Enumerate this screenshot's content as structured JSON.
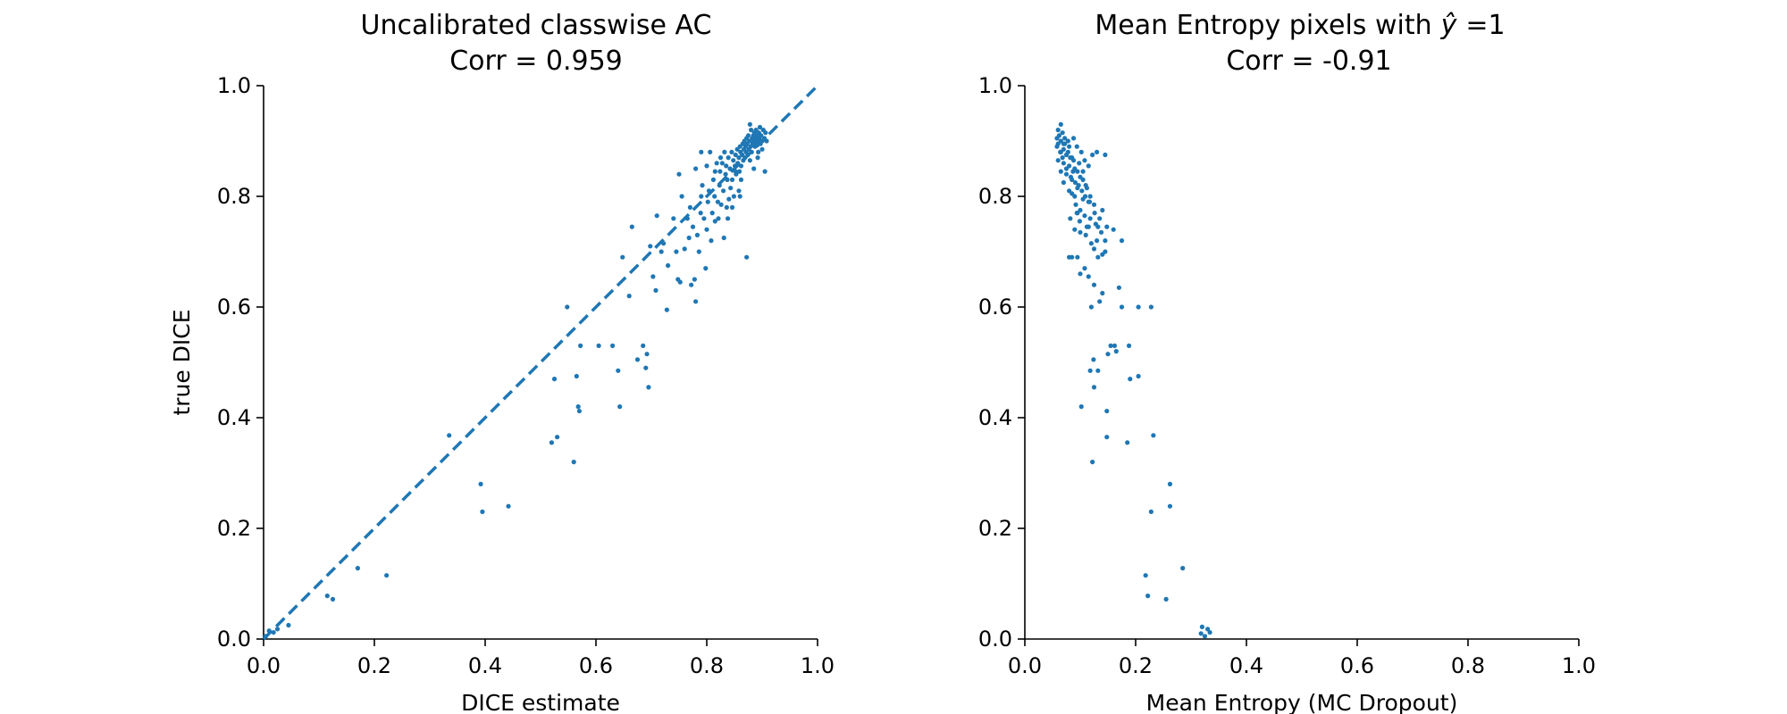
{
  "chart_data": [
    {
      "type": "scatter",
      "title": "Uncalibrated classwise AC",
      "subtitle": "Corr = 0.959",
      "xlabel": "DICE estimate",
      "ylabel": "true DICE",
      "xlim": [
        0,
        1
      ],
      "ylim": [
        0,
        1
      ],
      "xticks": [
        "0.0",
        "0.2",
        "0.4",
        "0.6",
        "0.8",
        "1.0"
      ],
      "yticks": [
        "0.0",
        "0.2",
        "0.4",
        "0.6",
        "0.8",
        "1.0"
      ],
      "grid": false,
      "reference_line": {
        "style": "dashed",
        "from": [
          0,
          0
        ],
        "to": [
          1,
          1
        ]
      },
      "color": "#1f77b4",
      "points": [
        [
          0.004,
          0.005
        ],
        [
          0.01,
          0.015
        ],
        [
          0.018,
          0.012
        ],
        [
          0.025,
          0.018
        ],
        [
          0.045,
          0.025
        ],
        [
          0.115,
          0.078
        ],
        [
          0.125,
          0.072
        ],
        [
          0.17,
          0.128
        ],
        [
          0.222,
          0.115
        ],
        [
          0.335,
          0.368
        ],
        [
          0.392,
          0.28
        ],
        [
          0.395,
          0.23
        ],
        [
          0.442,
          0.24
        ],
        [
          0.52,
          0.355
        ],
        [
          0.525,
          0.47
        ],
        [
          0.53,
          0.365
        ],
        [
          0.548,
          0.6
        ],
        [
          0.56,
          0.32
        ],
        [
          0.565,
          0.475
        ],
        [
          0.568,
          0.42
        ],
        [
          0.57,
          0.412
        ],
        [
          0.572,
          0.53
        ],
        [
          0.605,
          0.53
        ],
        [
          0.63,
          0.53
        ],
        [
          0.64,
          0.485
        ],
        [
          0.643,
          0.42
        ],
        [
          0.648,
          0.69
        ],
        [
          0.66,
          0.62
        ],
        [
          0.665,
          0.745
        ],
        [
          0.675,
          0.505
        ],
        [
          0.685,
          0.53
        ],
        [
          0.69,
          0.49
        ],
        [
          0.692,
          0.515
        ],
        [
          0.695,
          0.455
        ],
        [
          0.698,
          0.71
        ],
        [
          0.703,
          0.655
        ],
        [
          0.708,
          0.63
        ],
        [
          0.71,
          0.765
        ],
        [
          0.718,
          0.7
        ],
        [
          0.722,
          0.715
        ],
        [
          0.728,
          0.595
        ],
        [
          0.73,
          0.675
        ],
        [
          0.74,
          0.76
        ],
        [
          0.745,
          0.7
        ],
        [
          0.748,
          0.65
        ],
        [
          0.75,
          0.84
        ],
        [
          0.752,
          0.645
        ],
        [
          0.755,
          0.8
        ],
        [
          0.76,
          0.705
        ],
        [
          0.765,
          0.76
        ],
        [
          0.768,
          0.725
        ],
        [
          0.77,
          0.78
        ],
        [
          0.772,
          0.64
        ],
        [
          0.775,
          0.745
        ],
        [
          0.778,
          0.65
        ],
        [
          0.78,
          0.61
        ],
        [
          0.783,
          0.73
        ],
        [
          0.786,
          0.7
        ],
        [
          0.789,
          0.77
        ],
        [
          0.79,
          0.8
        ],
        [
          0.792,
          0.82
        ],
        [
          0.795,
          0.76
        ],
        [
          0.798,
          0.67
        ],
        [
          0.8,
          0.74
        ],
        [
          0.802,
          0.79
        ],
        [
          0.804,
          0.81
        ],
        [
          0.806,
          0.88
        ],
        [
          0.808,
          0.72
        ],
        [
          0.81,
          0.77
        ],
        [
          0.812,
          0.83
        ],
        [
          0.814,
          0.8
        ],
        [
          0.815,
          0.755
        ],
        [
          0.818,
          0.86
        ],
        [
          0.82,
          0.79
        ],
        [
          0.821,
          0.76
        ],
        [
          0.823,
          0.82
        ],
        [
          0.824,
          0.845
        ],
        [
          0.826,
          0.785
        ],
        [
          0.828,
          0.86
        ],
        [
          0.83,
          0.81
        ],
        [
          0.831,
          0.725
        ],
        [
          0.832,
          0.88
        ],
        [
          0.834,
          0.84
        ],
        [
          0.836,
          0.78
        ],
        [
          0.837,
          0.83
        ],
        [
          0.839,
          0.87
        ],
        [
          0.84,
          0.795
        ],
        [
          0.842,
          0.85
        ],
        [
          0.843,
          0.815
        ],
        [
          0.845,
          0.88
        ],
        [
          0.846,
          0.83
        ],
        [
          0.848,
          0.865
        ],
        [
          0.849,
          0.8
        ],
        [
          0.851,
          0.855
        ],
        [
          0.852,
          0.875
        ],
        [
          0.853,
          0.84
        ],
        [
          0.855,
          0.885
        ],
        [
          0.856,
          0.86
        ],
        [
          0.858,
          0.87
        ],
        [
          0.859,
          0.845
        ],
        [
          0.86,
          0.89
        ],
        [
          0.861,
          0.88
        ],
        [
          0.862,
          0.855
        ],
        [
          0.864,
          0.875
        ],
        [
          0.865,
          0.895
        ],
        [
          0.866,
          0.865
        ],
        [
          0.867,
          0.885
        ],
        [
          0.868,
          0.9
        ],
        [
          0.869,
          0.87
        ],
        [
          0.87,
          0.89
        ],
        [
          0.871,
          0.88
        ],
        [
          0.872,
          0.905
        ],
        [
          0.873,
          0.895
        ],
        [
          0.874,
          0.875
        ],
        [
          0.875,
          0.91
        ],
        [
          0.876,
          0.885
        ],
        [
          0.877,
          0.9
        ],
        [
          0.878,
          0.93
        ],
        [
          0.879,
          0.89
        ],
        [
          0.88,
          0.92
        ],
        [
          0.881,
          0.88
        ],
        [
          0.882,
          0.905
        ],
        [
          0.883,
          0.895
        ],
        [
          0.884,
          0.91
        ],
        [
          0.885,
          0.9
        ],
        [
          0.886,
          0.915
        ],
        [
          0.887,
          0.89
        ],
        [
          0.888,
          0.905
        ],
        [
          0.889,
          0.92
        ],
        [
          0.89,
          0.895
        ],
        [
          0.891,
          0.91
        ],
        [
          0.892,
          0.9
        ],
        [
          0.893,
          0.88
        ],
        [
          0.894,
          0.915
        ],
        [
          0.895,
          0.905
        ],
        [
          0.896,
          0.925
        ],
        [
          0.897,
          0.895
        ],
        [
          0.898,
          0.91
        ],
        [
          0.9,
          0.9
        ],
        [
          0.902,
          0.92
        ],
        [
          0.904,
          0.905
        ],
        [
          0.906,
          0.915
        ],
        [
          0.908,
          0.9
        ],
        [
          0.862,
          0.83
        ],
        [
          0.858,
          0.81
        ],
        [
          0.852,
          0.845
        ],
        [
          0.846,
          0.78
        ],
        [
          0.838,
          0.76
        ],
        [
          0.878,
          0.865
        ],
        [
          0.885,
          0.85
        ],
        [
          0.892,
          0.87
        ],
        [
          0.9,
          0.885
        ],
        [
          0.905,
          0.845
        ],
        [
          0.86,
          0.8
        ],
        [
          0.872,
          0.69
        ],
        [
          0.815,
          0.845
        ],
        [
          0.825,
          0.87
        ],
        [
          0.835,
          0.855
        ],
        [
          0.78,
          0.85
        ],
        [
          0.79,
          0.88
        ],
        [
          0.8,
          0.855
        ]
      ]
    },
    {
      "type": "scatter",
      "title": "Mean Entropy pixels with",
      "title_math_symbol": "ŷ",
      "title_suffix": "=1",
      "subtitle": "Corr = -0.91",
      "xlabel": "Mean Entropy (MC Dropout)",
      "ylabel": "",
      "xlim": [
        0,
        1
      ],
      "ylim": [
        0,
        1
      ],
      "xticks": [
        "0.0",
        "0.2",
        "0.4",
        "0.6",
        "0.8",
        "1.0"
      ],
      "yticks": [
        "0.0",
        "0.2",
        "0.4",
        "0.6",
        "0.8",
        "1.0"
      ],
      "grid": false,
      "color": "#1f77b4",
      "points": [
        [
          0.325,
          0.005
        ],
        [
          0.32,
          0.022
        ],
        [
          0.33,
          0.018
        ],
        [
          0.334,
          0.012
        ],
        [
          0.318,
          0.01
        ],
        [
          0.222,
          0.078
        ],
        [
          0.255,
          0.072
        ],
        [
          0.285,
          0.128
        ],
        [
          0.218,
          0.115
        ],
        [
          0.232,
          0.368
        ],
        [
          0.262,
          0.28
        ],
        [
          0.228,
          0.23
        ],
        [
          0.262,
          0.24
        ],
        [
          0.185,
          0.355
        ],
        [
          0.19,
          0.47
        ],
        [
          0.148,
          0.365
        ],
        [
          0.228,
          0.6
        ],
        [
          0.122,
          0.32
        ],
        [
          0.205,
          0.475
        ],
        [
          0.102,
          0.42
        ],
        [
          0.148,
          0.412
        ],
        [
          0.188,
          0.53
        ],
        [
          0.155,
          0.53
        ],
        [
          0.162,
          0.53
        ],
        [
          0.132,
          0.485
        ],
        [
          0.125,
          0.455
        ],
        [
          0.124,
          0.505
        ],
        [
          0.118,
          0.485
        ],
        [
          0.165,
          0.52
        ],
        [
          0.15,
          0.515
        ],
        [
          0.175,
          0.6
        ],
        [
          0.17,
          0.635
        ],
        [
          0.205,
          0.6
        ],
        [
          0.14,
          0.625
        ],
        [
          0.135,
          0.61
        ],
        [
          0.125,
          0.64
        ],
        [
          0.12,
          0.6
        ],
        [
          0.115,
          0.655
        ],
        [
          0.108,
          0.67
        ],
        [
          0.1,
          0.66
        ],
        [
          0.095,
          0.69
        ],
        [
          0.085,
          0.69
        ],
        [
          0.08,
          0.69
        ],
        [
          0.132,
          0.69
        ],
        [
          0.14,
          0.695
        ],
        [
          0.145,
          0.7
        ],
        [
          0.125,
          0.705
        ],
        [
          0.12,
          0.715
        ],
        [
          0.13,
          0.72
        ],
        [
          0.11,
          0.73
        ],
        [
          0.1,
          0.735
        ],
        [
          0.09,
          0.74
        ],
        [
          0.115,
          0.745
        ],
        [
          0.148,
          0.745
        ],
        [
          0.128,
          0.75
        ],
        [
          0.118,
          0.76
        ],
        [
          0.108,
          0.765
        ],
        [
          0.095,
          0.77
        ],
        [
          0.14,
          0.775
        ],
        [
          0.125,
          0.785
        ],
        [
          0.115,
          0.79
        ],
        [
          0.105,
          0.795
        ],
        [
          0.09,
          0.8
        ],
        [
          0.085,
          0.805
        ],
        [
          0.08,
          0.81
        ],
        [
          0.095,
          0.815
        ],
        [
          0.11,
          0.82
        ],
        [
          0.07,
          0.825
        ],
        [
          0.085,
          0.83
        ],
        [
          0.1,
          0.835
        ],
        [
          0.075,
          0.84
        ],
        [
          0.065,
          0.845
        ],
        [
          0.09,
          0.85
        ],
        [
          0.08,
          0.855
        ],
        [
          0.07,
          0.86
        ],
        [
          0.06,
          0.865
        ],
        [
          0.085,
          0.87
        ],
        [
          0.075,
          0.875
        ],
        [
          0.065,
          0.88
        ],
        [
          0.07,
          0.885
        ],
        [
          0.08,
          0.89
        ],
        [
          0.06,
          0.895
        ],
        [
          0.065,
          0.9
        ],
        [
          0.058,
          0.905
        ],
        [
          0.062,
          0.91
        ],
        [
          0.068,
          0.915
        ],
        [
          0.06,
          0.92
        ],
        [
          0.065,
          0.93
        ],
        [
          0.072,
          0.895
        ],
        [
          0.078,
          0.88
        ],
        [
          0.088,
          0.865
        ],
        [
          0.095,
          0.845
        ],
        [
          0.105,
          0.83
        ],
        [
          0.112,
          0.815
        ],
        [
          0.118,
          0.8
        ],
        [
          0.092,
          0.785
        ],
        [
          0.1,
          0.775
        ],
        [
          0.082,
          0.76
        ],
        [
          0.135,
          0.76
        ],
        [
          0.145,
          0.72
        ],
        [
          0.16,
          0.74
        ],
        [
          0.175,
          0.72
        ],
        [
          0.122,
          0.875
        ],
        [
          0.13,
          0.88
        ],
        [
          0.145,
          0.875
        ],
        [
          0.098,
          0.86
        ],
        [
          0.105,
          0.845
        ],
        [
          0.072,
          0.905
        ],
        [
          0.075,
          0.85
        ],
        [
          0.083,
          0.835
        ],
        [
          0.091,
          0.825
        ],
        [
          0.068,
          0.87
        ],
        [
          0.058,
          0.89
        ],
        [
          0.088,
          0.905
        ],
        [
          0.094,
          0.89
        ],
        [
          0.102,
          0.88
        ],
        [
          0.108,
          0.865
        ],
        [
          0.115,
          0.855
        ],
        [
          0.078,
          0.9
        ],
        [
          0.07,
          0.895
        ],
        [
          0.064,
          0.88
        ],
        [
          0.082,
          0.87
        ],
        [
          0.087,
          0.845
        ],
        [
          0.097,
          0.82
        ],
        [
          0.103,
          0.81
        ],
        [
          0.109,
          0.8
        ],
        [
          0.117,
          0.79
        ],
        [
          0.126,
          0.77
        ],
        [
          0.132,
          0.745
        ],
        [
          0.138,
          0.735
        ],
        [
          0.094,
          0.77
        ],
        [
          0.099,
          0.755
        ],
        [
          0.112,
          0.745
        ]
      ]
    }
  ]
}
